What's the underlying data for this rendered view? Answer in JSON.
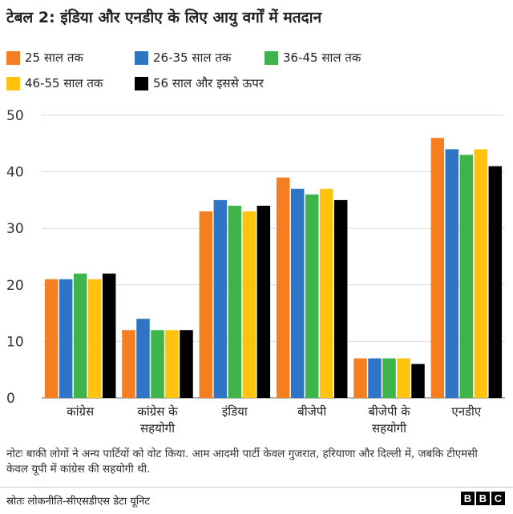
{
  "chart_data": {
    "type": "bar",
    "title": "टेबल 2: इंडिया और एनडीए के लिए आयु वर्गों में मतदान",
    "categories": [
      [
        "कांग्रेस"
      ],
      [
        "कांग्रेस के",
        "सहयोगी"
      ],
      [
        "इंडिया"
      ],
      [
        "बीजेपी"
      ],
      [
        "बीजेपी के",
        "सहयोगी"
      ],
      [
        "एनडीए"
      ]
    ],
    "series": [
      {
        "name": "25 साल तक",
        "color": "#f57f20",
        "values": [
          21,
          12,
          33,
          39,
          7,
          46
        ]
      },
      {
        "name": "26-35 साल तक",
        "color": "#2e75c6",
        "values": [
          21,
          14,
          35,
          37,
          7,
          44
        ]
      },
      {
        "name": "36-45 साल तक",
        "color": "#3db54a",
        "values": [
          22,
          12,
          34,
          36,
          7,
          43
        ]
      },
      {
        "name": "46-55 साल तक",
        "color": "#ffc20e",
        "values": [
          21,
          12,
          33,
          37,
          7,
          44
        ]
      },
      {
        "name": "56 साल और इससे ऊपर",
        "color": "#000000",
        "values": [
          22,
          12,
          34,
          35,
          6,
          41
        ]
      }
    ],
    "yticks": [
      "0",
      "10",
      "20",
      "30",
      "40",
      "50"
    ],
    "ylim": [
      0,
      50
    ],
    "grid": true,
    "legend": "top"
  },
  "note": "नोटः बाकी लोगों ने अन्य पार्टियों को वोट किया. आम आदमी पार्टी केवल गुजरात, हरियाणा और दिल्ली में, जबकि टीएमसी केवल यूपी में कांग्रेस की सहयोगी थी.",
  "source": "स्रोतः लोकनीति-सीएसडीएस डेटा यूनिट",
  "logo": [
    "B",
    "B",
    "C"
  ]
}
